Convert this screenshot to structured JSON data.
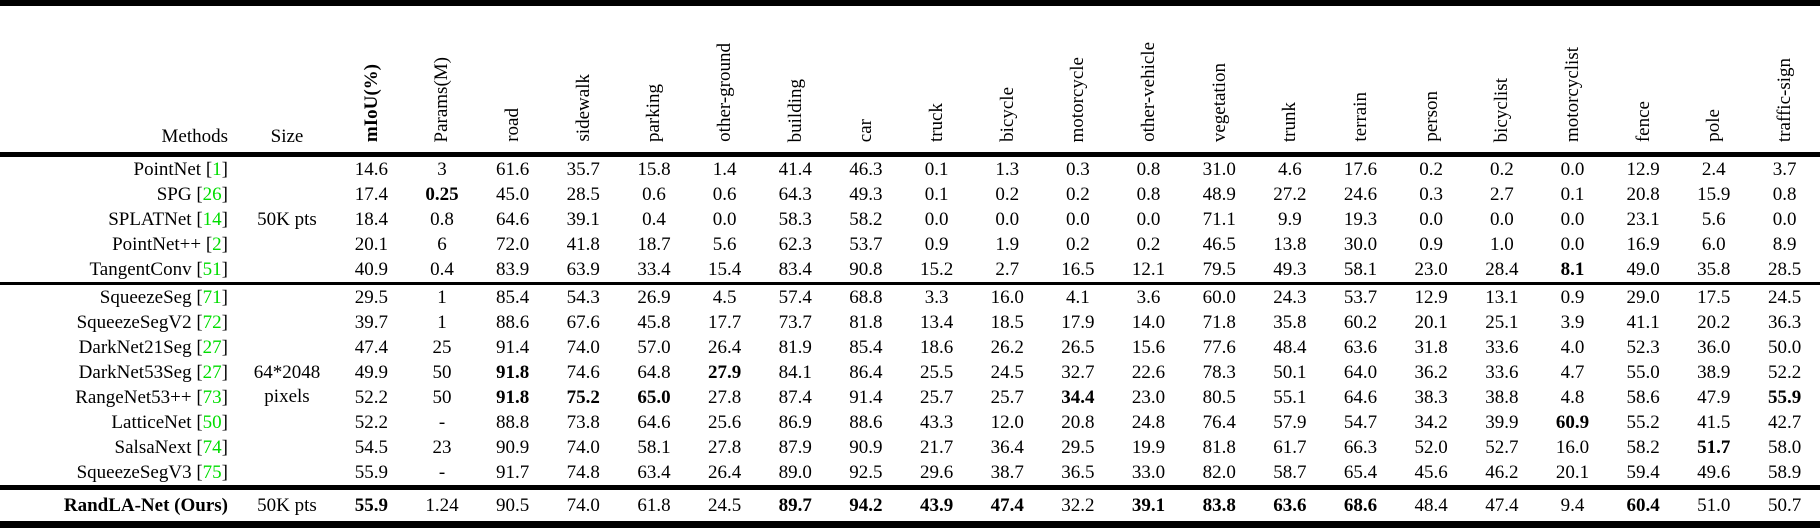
{
  "table": {
    "citation_color": "#00dd00",
    "columns": {
      "method_label": "Methods",
      "size_label": "Size",
      "metrics": [
        {
          "label": "mIoU(%)",
          "bold": true
        },
        {
          "label": "Params(M)",
          "bold": false
        },
        {
          "label": "road",
          "bold": false
        },
        {
          "label": "sidewalk",
          "bold": false
        },
        {
          "label": "parking",
          "bold": false
        },
        {
          "label": "other-ground",
          "bold": false
        },
        {
          "label": "building",
          "bold": false
        },
        {
          "label": "car",
          "bold": false
        },
        {
          "label": "truck",
          "bold": false
        },
        {
          "label": "bicycle",
          "bold": false
        },
        {
          "label": "motorcycle",
          "bold": false
        },
        {
          "label": "other-vehicle",
          "bold": false
        },
        {
          "label": "vegetation",
          "bold": false
        },
        {
          "label": "trunk",
          "bold": false
        },
        {
          "label": "terrain",
          "bold": false
        },
        {
          "label": "person",
          "bold": false
        },
        {
          "label": "bicyclist",
          "bold": false
        },
        {
          "label": "motorcyclist",
          "bold": false
        },
        {
          "label": "fence",
          "bold": false
        },
        {
          "label": "pole",
          "bold": false
        },
        {
          "label": "traffic-sign",
          "bold": false
        }
      ]
    },
    "groups": [
      {
        "size_lines": [
          "50K pts"
        ],
        "rows": [
          {
            "method": "PointNet",
            "cite": "1",
            "method_bold": false,
            "bold_cols": [],
            "values": [
              "14.6",
              "3",
              "61.6",
              "35.7",
              "15.8",
              "1.4",
              "41.4",
              "46.3",
              "0.1",
              "1.3",
              "0.3",
              "0.8",
              "31.0",
              "4.6",
              "17.6",
              "0.2",
              "0.2",
              "0.0",
              "12.9",
              "2.4",
              "3.7"
            ]
          },
          {
            "method": "SPG",
            "cite": "26",
            "method_bold": false,
            "bold_cols": [
              1
            ],
            "values": [
              "17.4",
              "0.25",
              "45.0",
              "28.5",
              "0.6",
              "0.6",
              "64.3",
              "49.3",
              "0.1",
              "0.2",
              "0.2",
              "0.8",
              "48.9",
              "27.2",
              "24.6",
              "0.3",
              "2.7",
              "0.1",
              "20.8",
              "15.9",
              "0.8"
            ]
          },
          {
            "method": "SPLATNet",
            "cite": "14",
            "method_bold": false,
            "bold_cols": [],
            "values": [
              "18.4",
              "0.8",
              "64.6",
              "39.1",
              "0.4",
              "0.0",
              "58.3",
              "58.2",
              "0.0",
              "0.0",
              "0.0",
              "0.0",
              "71.1",
              "9.9",
              "19.3",
              "0.0",
              "0.0",
              "0.0",
              "23.1",
              "5.6",
              "0.0"
            ]
          },
          {
            "method": "PointNet++",
            "cite": "2",
            "method_bold": false,
            "bold_cols": [],
            "values": [
              "20.1",
              "6",
              "72.0",
              "41.8",
              "18.7",
              "5.6",
              "62.3",
              "53.7",
              "0.9",
              "1.9",
              "0.2",
              "0.2",
              "46.5",
              "13.8",
              "30.0",
              "0.9",
              "1.0",
              "0.0",
              "16.9",
              "6.0",
              "8.9"
            ]
          },
          {
            "method": "TangentConv",
            "cite": "51",
            "method_bold": false,
            "bold_cols": [
              17
            ],
            "values": [
              "40.9",
              "0.4",
              "83.9",
              "63.9",
              "33.4",
              "15.4",
              "83.4",
              "90.8",
              "15.2",
              "2.7",
              "16.5",
              "12.1",
              "79.5",
              "49.3",
              "58.1",
              "23.0",
              "28.4",
              "8.1",
              "49.0",
              "35.8",
              "28.5"
            ]
          }
        ]
      },
      {
        "size_lines": [
          "64*2048",
          "pixels"
        ],
        "rows": [
          {
            "method": "SqueezeSeg",
            "cite": "71",
            "method_bold": false,
            "bold_cols": [],
            "values": [
              "29.5",
              "1",
              "85.4",
              "54.3",
              "26.9",
              "4.5",
              "57.4",
              "68.8",
              "3.3",
              "16.0",
              "4.1",
              "3.6",
              "60.0",
              "24.3",
              "53.7",
              "12.9",
              "13.1",
              "0.9",
              "29.0",
              "17.5",
              "24.5"
            ]
          },
          {
            "method": "SqueezeSegV2",
            "cite": "72",
            "method_bold": false,
            "bold_cols": [],
            "values": [
              "39.7",
              "1",
              "88.6",
              "67.6",
              "45.8",
              "17.7",
              "73.7",
              "81.8",
              "13.4",
              "18.5",
              "17.9",
              "14.0",
              "71.8",
              "35.8",
              "60.2",
              "20.1",
              "25.1",
              "3.9",
              "41.1",
              "20.2",
              "36.3"
            ]
          },
          {
            "method": "DarkNet21Seg",
            "cite": "27",
            "method_bold": false,
            "bold_cols": [],
            "values": [
              "47.4",
              "25",
              "91.4",
              "74.0",
              "57.0",
              "26.4",
              "81.9",
              "85.4",
              "18.6",
              "26.2",
              "26.5",
              "15.6",
              "77.6",
              "48.4",
              "63.6",
              "31.8",
              "33.6",
              "4.0",
              "52.3",
              "36.0",
              "50.0"
            ]
          },
          {
            "method": "DarkNet53Seg",
            "cite": "27",
            "method_bold": false,
            "bold_cols": [
              2,
              5
            ],
            "values": [
              "49.9",
              "50",
              "91.8",
              "74.6",
              "64.8",
              "27.9",
              "84.1",
              "86.4",
              "25.5",
              "24.5",
              "32.7",
              "22.6",
              "78.3",
              "50.1",
              "64.0",
              "36.2",
              "33.6",
              "4.7",
              "55.0",
              "38.9",
              "52.2"
            ]
          },
          {
            "method": "RangeNet53++",
            "cite": "73",
            "method_bold": false,
            "bold_cols": [
              2,
              3,
              4,
              10,
              20
            ],
            "values": [
              "52.2",
              "50",
              "91.8",
              "75.2",
              "65.0",
              "27.8",
              "87.4",
              "91.4",
              "25.7",
              "25.7",
              "34.4",
              "23.0",
              "80.5",
              "55.1",
              "64.6",
              "38.3",
              "38.8",
              "4.8",
              "58.6",
              "47.9",
              "55.9"
            ]
          },
          {
            "method": "LatticeNet",
            "cite": "50",
            "method_bold": false,
            "bold_cols": [
              17
            ],
            "values": [
              "52.2",
              "-",
              "88.8",
              "73.8",
              "64.6",
              "25.6",
              "86.9",
              "88.6",
              "43.3",
              "12.0",
              "20.8",
              "24.8",
              "76.4",
              "57.9",
              "54.7",
              "34.2",
              "39.9",
              "60.9",
              "55.2",
              "41.5",
              "42.7"
            ]
          },
          {
            "method": "SalsaNext",
            "cite": "74",
            "method_bold": false,
            "bold_cols": [
              19
            ],
            "values": [
              "54.5",
              "23",
              "90.9",
              "74.0",
              "58.1",
              "27.8",
              "87.9",
              "90.9",
              "21.7",
              "36.4",
              "29.5",
              "19.9",
              "81.8",
              "61.7",
              "66.3",
              "52.0",
              "52.7",
              "16.0",
              "58.2",
              "51.7",
              "58.0"
            ]
          },
          {
            "method": "SqueezeSegV3",
            "cite": "75",
            "method_bold": false,
            "bold_cols": [],
            "values": [
              "55.9",
              "-",
              "91.7",
              "74.8",
              "63.4",
              "26.4",
              "89.0",
              "92.5",
              "29.6",
              "38.7",
              "36.5",
              "33.0",
              "82.0",
              "58.7",
              "65.4",
              "45.6",
              "46.2",
              "20.1",
              "59.4",
              "49.6",
              "58.9"
            ]
          }
        ]
      },
      {
        "size_lines": [
          "50K pts"
        ],
        "rows": [
          {
            "method": "RandLA-Net (Ours)",
            "cite": null,
            "method_bold": true,
            "bold_cols": [
              0,
              6,
              7,
              8,
              9,
              11,
              12,
              13,
              14,
              18
            ],
            "values": [
              "55.9",
              "1.24",
              "90.5",
              "74.0",
              "61.8",
              "24.5",
              "89.7",
              "94.2",
              "43.9",
              "47.4",
              "32.2",
              "39.1",
              "83.8",
              "63.6",
              "68.6",
              "48.4",
              "47.4",
              "9.4",
              "60.4",
              "51.0",
              "50.7"
            ]
          }
        ]
      }
    ]
  }
}
